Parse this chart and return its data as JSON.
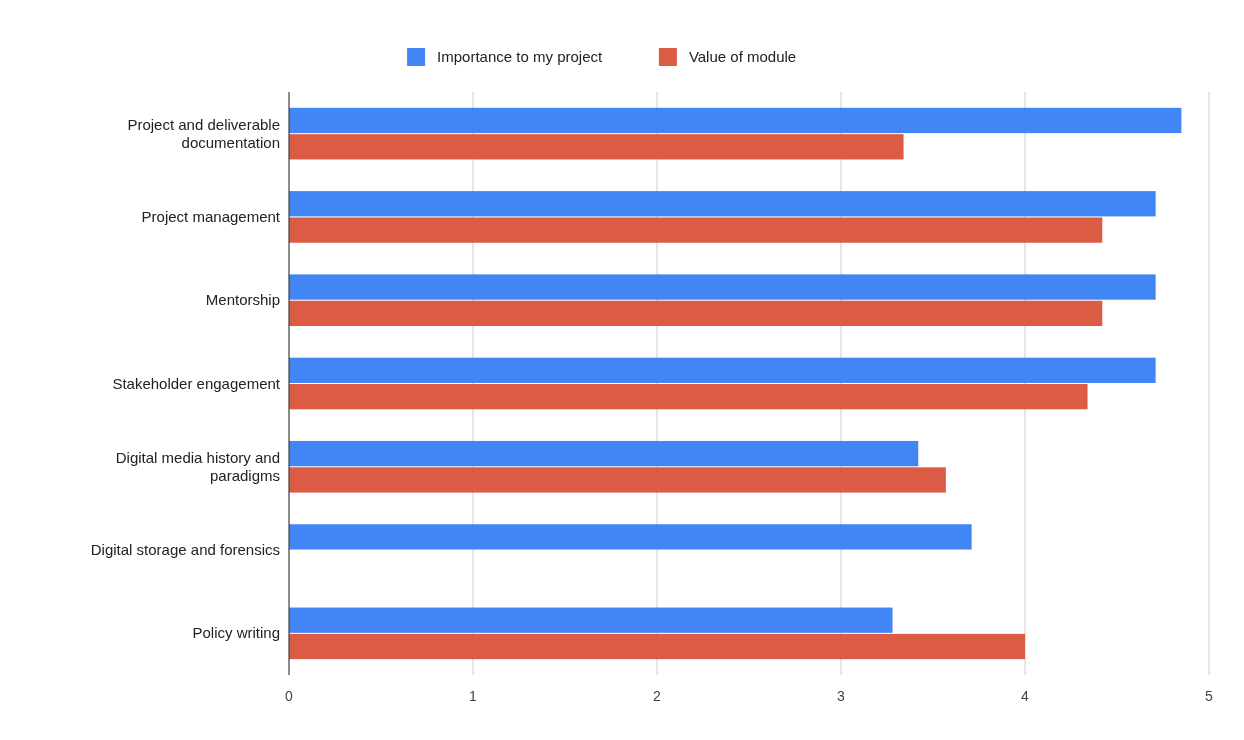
{
  "chart_data": {
    "type": "bar",
    "orientation": "horizontal",
    "categories": [
      "Project and deliverable documentation",
      "Project management",
      "Mentorship",
      "Stakeholder engagement",
      "Digital media history and paradigms",
      "Digital storage and forensics",
      "Policy writing"
    ],
    "series": [
      {
        "name": "Importance to my project",
        "color": "#4285f4",
        "values": [
          4.85,
          4.71,
          4.71,
          4.71,
          3.42,
          3.71,
          3.28
        ]
      },
      {
        "name": "Value of module",
        "color": "#db5b45",
        "values": [
          3.34,
          4.42,
          4.42,
          4.34,
          3.57,
          null,
          4.0
        ]
      }
    ],
    "xlim": [
      0,
      5
    ],
    "xticks": [
      0,
      1,
      2,
      3,
      4,
      5
    ],
    "grid": "x",
    "legend": "top"
  }
}
